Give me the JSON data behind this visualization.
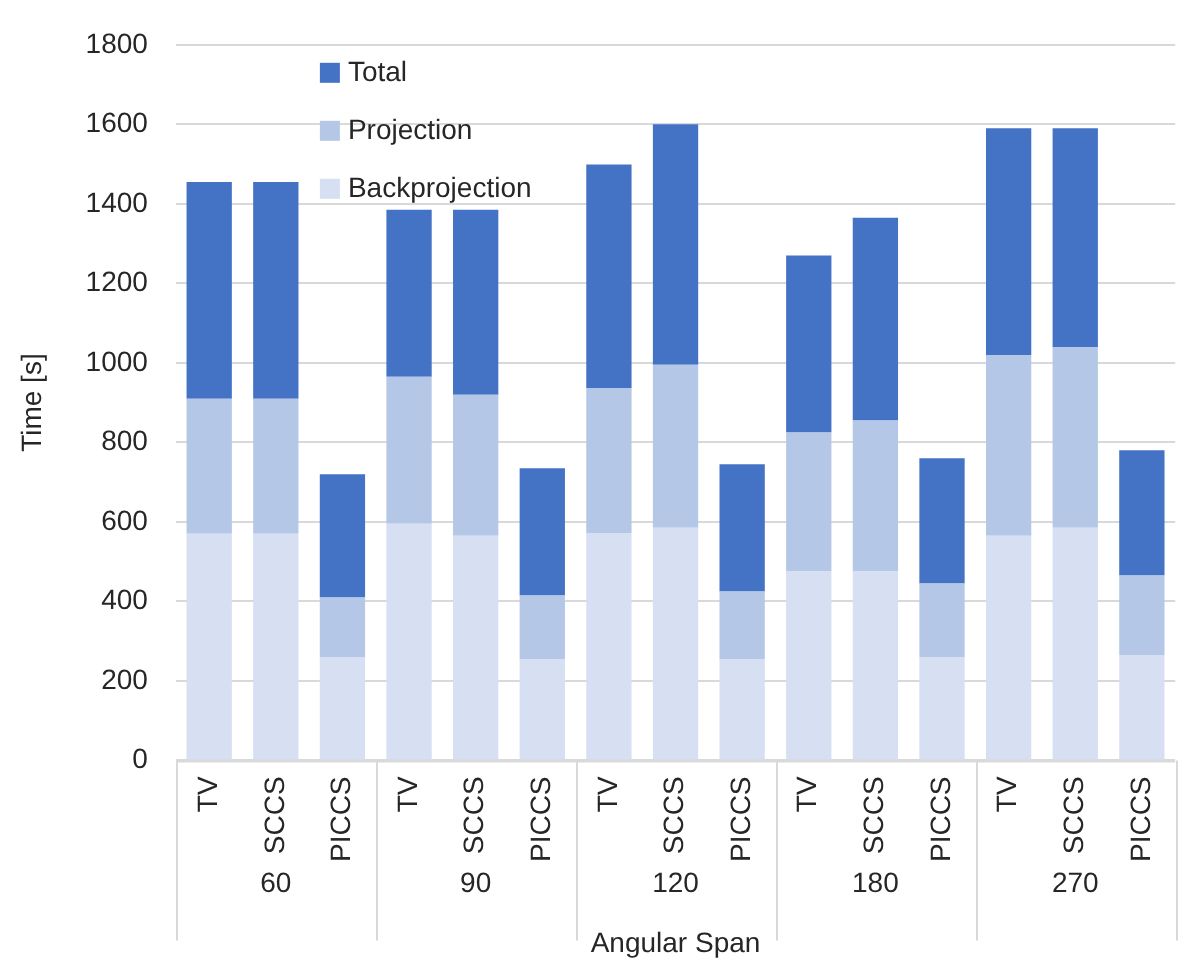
{
  "chart_data": {
    "type": "bar",
    "stacked": true,
    "categories": [
      "TV",
      "SCCS",
      "PICCS",
      "TV",
      "SCCS",
      "PICCS",
      "TV",
      "SCCS",
      "PICCS",
      "TV",
      "SCCS",
      "PICCS",
      "TV",
      "SCCS",
      "PICCS"
    ],
    "series": [
      {
        "name": "Backprojection",
        "color": "#d6e0f2",
        "values": [
          570,
          570,
          260,
          595,
          565,
          255,
          572,
          585,
          255,
          475,
          475,
          260,
          565,
          585,
          265
        ]
      },
      {
        "name": "Projection",
        "color": "#b4c7e7",
        "values": [
          340,
          340,
          150,
          370,
          355,
          160,
          365,
          410,
          170,
          350,
          380,
          185,
          455,
          455,
          200
        ]
      },
      {
        "name": "Total",
        "color": "#4472c4",
        "values": [
          545,
          545,
          310,
          420,
          465,
          320,
          562,
          605,
          320,
          445,
          510,
          315,
          570,
          550,
          315
        ]
      }
    ],
    "ylabel": "Time [s]",
    "xlabel": "Angular Span",
    "annotations": [
      "60",
      "90",
      "120",
      "180",
      "270"
    ],
    "ylim": [
      0,
      1800
    ],
    "yticks": [
      0,
      200,
      400,
      600,
      800,
      1000,
      1200,
      1400,
      1600,
      1800
    ],
    "grid": "y",
    "legend": "top left"
  }
}
